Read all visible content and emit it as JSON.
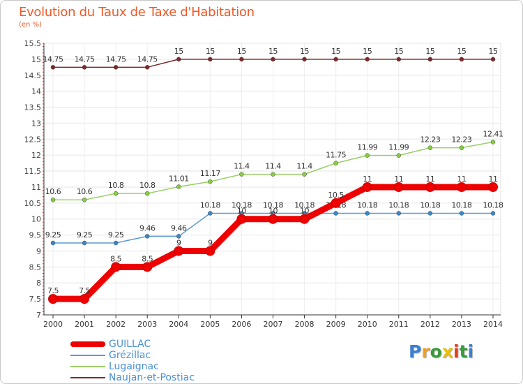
{
  "header": {
    "title": "Evolution du Taux de Taxe d'Habitation",
    "unit": "(en %)"
  },
  "logo": {
    "letters": [
      "P",
      "r",
      "o",
      "x",
      "i",
      "t",
      "i"
    ],
    "colors": [
      "#3a7fd0",
      "#f0a020",
      "#3a9a3a",
      "#e8c010",
      "#e04020",
      "#3a9a3a",
      "#3a7fd0"
    ]
  },
  "chart_data": {
    "type": "line",
    "x": [
      2000,
      2001,
      2002,
      2003,
      2004,
      2005,
      2006,
      2007,
      2008,
      2009,
      2010,
      2011,
      2012,
      2013,
      2014
    ],
    "ylim": [
      7,
      15.5
    ],
    "yticks": [
      7,
      7.5,
      8,
      8.5,
      9,
      9.5,
      10,
      10.5,
      11,
      11.5,
      12,
      12.5,
      13,
      13.5,
      14,
      14.5,
      15,
      15.5
    ],
    "ytick_labels": [
      "7",
      "7.5",
      "8",
      "8.5",
      "9",
      "9.5",
      "10",
      "10.5",
      "11",
      "11.5",
      "12",
      "12.5",
      "13",
      "13.5",
      "14",
      "14.5",
      "15",
      "15.5"
    ],
    "grid": true,
    "legend_position": "bottom-left",
    "series": [
      {
        "name": "Naujan-et-Postiac",
        "color": "#7a2a2a",
        "marker_color": "#7a2a2a",
        "values": [
          14.75,
          14.75,
          14.75,
          14.75,
          15,
          15,
          15,
          15,
          15,
          15,
          15,
          15,
          15,
          15,
          15
        ],
        "labels": [
          "14.75",
          "14.75",
          "14.75",
          "14.75",
          "15",
          "15",
          "15",
          "15",
          "15",
          "15",
          "15",
          "15",
          "15",
          "15",
          "15"
        ]
      },
      {
        "name": "Lugaignac",
        "color": "#99d066",
        "marker_color": "#88cc44",
        "values": [
          10.6,
          10.6,
          10.8,
          10.8,
          11.01,
          11.17,
          11.4,
          11.4,
          11.4,
          11.75,
          11.99,
          11.99,
          12.23,
          12.23,
          12.41
        ],
        "labels": [
          "10.6",
          "10.6",
          "10.8",
          "10.8",
          "11.01",
          "11.17",
          "11.4",
          "11.4",
          "11.4",
          "11.75",
          "11.99",
          "11.99",
          "12.23",
          "12.23",
          "12.41"
        ]
      },
      {
        "name": "Grézillac",
        "color": "#5a9ad0",
        "marker_color": "#3a88c8",
        "values": [
          9.25,
          9.25,
          9.25,
          9.46,
          9.46,
          10.18,
          10.18,
          10.18,
          10.18,
          10.18,
          10.18,
          10.18,
          10.18,
          10.18,
          10.18
        ],
        "labels": [
          "9.25",
          "9.25",
          "9.25",
          "9.46",
          "9.46",
          "10.18",
          "10.18",
          "10.18",
          "10.18",
          "10.18",
          "10.18",
          "10.18",
          "10.18",
          "10.18",
          "10.18"
        ]
      },
      {
        "name": "GUILLAC",
        "color": "#ee0000",
        "marker_color": "#ee0000",
        "values": [
          7.5,
          7.5,
          8.5,
          8.5,
          9,
          9,
          10,
          10,
          10,
          10.5,
          11,
          11,
          11,
          11,
          11
        ],
        "labels": [
          "7.5",
          "7.5",
          "8.5",
          "8.5",
          "9",
          "9",
          "10",
          "10",
          "10",
          "10.5",
          "11",
          "11",
          "11",
          "11",
          "11"
        ]
      }
    ]
  },
  "legend": {
    "items": [
      {
        "label": "GUILLAC",
        "color": "#ee0000",
        "thick": true
      },
      {
        "label": "Grézillac",
        "color": "#5a9ad0",
        "thick": false
      },
      {
        "label": "Lugaignac",
        "color": "#99d066",
        "thick": false
      },
      {
        "label": "Naujan-et-Postiac",
        "color": "#7a2a2a",
        "thick": false
      }
    ]
  }
}
